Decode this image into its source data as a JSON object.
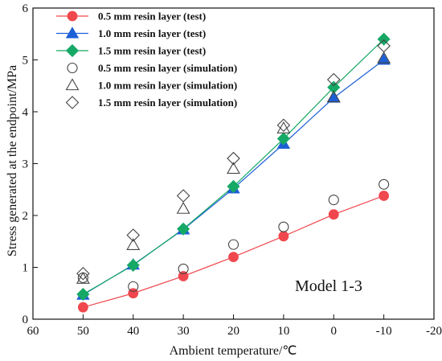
{
  "chart_data": {
    "type": "line",
    "xlabel": "Ambient temperature/℃",
    "ylabel": "Stress generated at the endpoint/MPa",
    "xlim": [
      60,
      -20
    ],
    "ylim": [
      0,
      6
    ],
    "xticks": [
      "60",
      "50",
      "40",
      "30",
      "20",
      "10",
      "0",
      "-10",
      "-20"
    ],
    "yticks": [
      "0",
      "1",
      "2",
      "3",
      "4",
      "5",
      "6"
    ],
    "x": [
      50,
      40,
      30,
      20,
      10,
      0,
      -10
    ],
    "annotation": "Model 1-3",
    "legend_position": "top-left",
    "grid": false,
    "series": [
      {
        "name": "0.5 mm resin layer (test)",
        "kind": "test",
        "marker": "circle",
        "color": "#f0474e",
        "values": [
          0.23,
          0.5,
          0.83,
          1.2,
          1.6,
          2.02,
          2.38
        ]
      },
      {
        "name": "1.0 mm resin layer (test)",
        "kind": "test",
        "marker": "triangle",
        "color": "#1d5fd6",
        "values": [
          0.47,
          1.05,
          1.73,
          2.52,
          3.38,
          4.27,
          5.0
        ]
      },
      {
        "name": "1.5 mm resin layer (test)",
        "kind": "test",
        "marker": "diamond",
        "color": "#16a865",
        "values": [
          0.48,
          1.04,
          1.74,
          2.56,
          3.48,
          4.47,
          5.4
        ]
      },
      {
        "name": "0.5 mm resin layer (simulation)",
        "kind": "simulation",
        "marker": "circle",
        "color": "#444444",
        "values": [
          0.8,
          0.63,
          0.97,
          1.44,
          1.78,
          2.3,
          2.6
        ]
      },
      {
        "name": "1.0 mm resin layer (simulation)",
        "kind": "simulation",
        "marker": "triangle",
        "color": "#444444",
        "values": [
          0.78,
          1.43,
          2.13,
          2.9,
          3.68,
          4.28,
          5.03
        ]
      },
      {
        "name": "1.5 mm resin layer (simulation)",
        "kind": "simulation",
        "marker": "diamond",
        "color": "#444444",
        "values": [
          0.88,
          1.62,
          2.38,
          3.1,
          3.74,
          4.62,
          5.27
        ]
      }
    ]
  }
}
